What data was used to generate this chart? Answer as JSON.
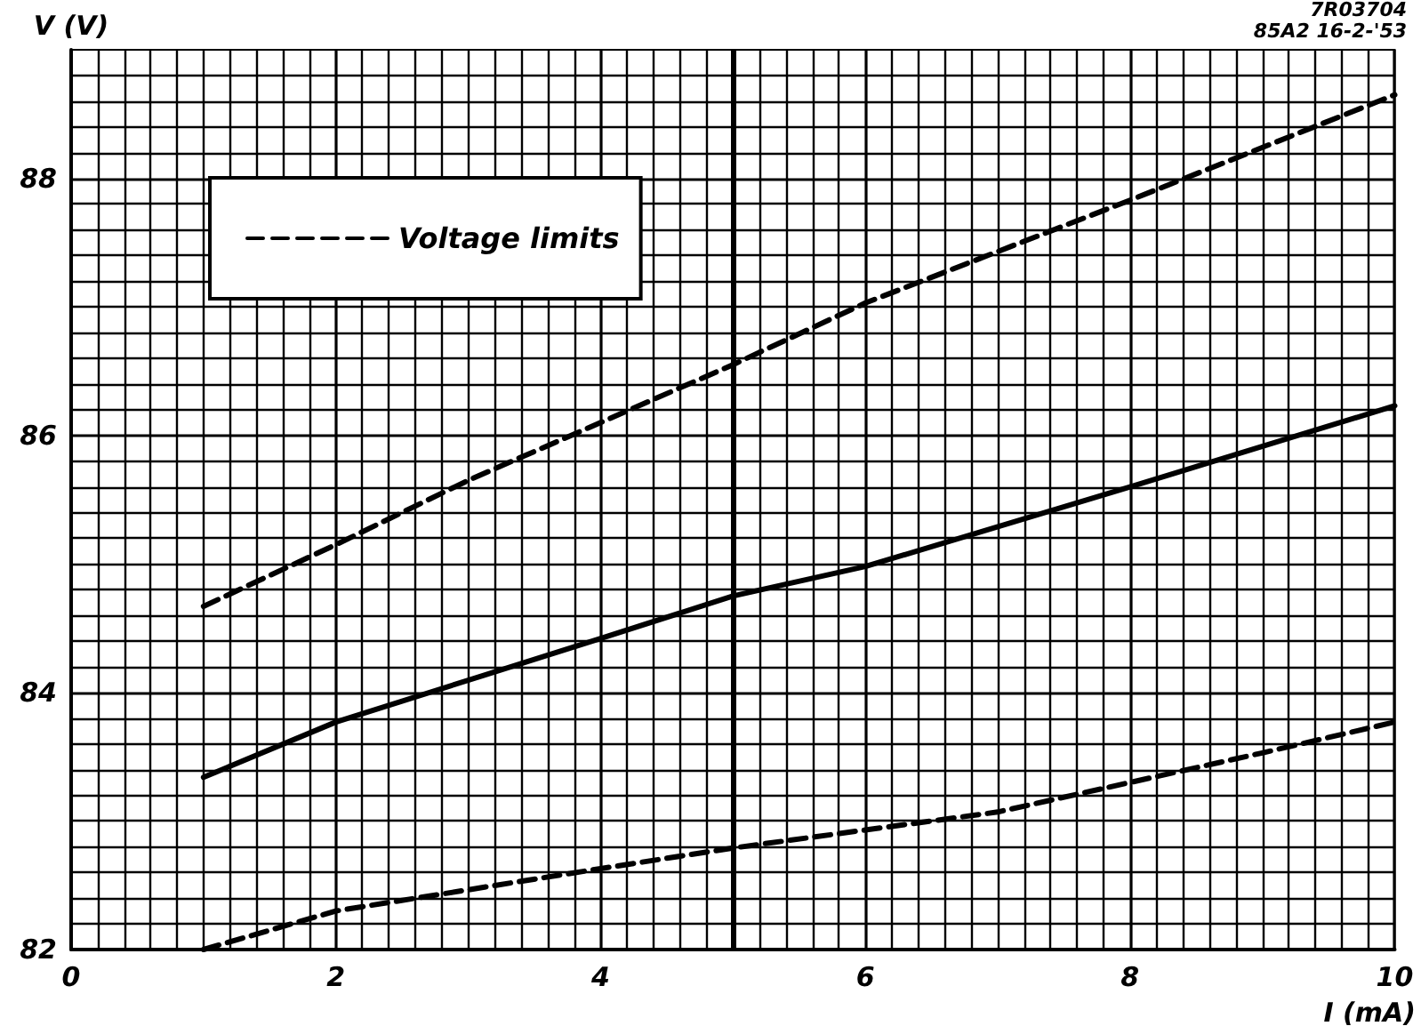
{
  "chart_data": {
    "type": "line",
    "xlabel": "I (mA)",
    "ylabel": "V (V)",
    "xlim": [
      0,
      10
    ],
    "xticks": [
      0,
      2,
      4,
      6,
      8,
      10
    ],
    "ylim": [
      82,
      89
    ],
    "yticks": [
      82,
      84,
      86,
      88
    ],
    "grid": true,
    "legend": "top left",
    "marker": "none",
    "ref_lines": [
      {
        "axis": "x",
        "value": 5,
        "label": null,
        "color": "#000000",
        "line_style": "solid"
      }
    ],
    "annotations": [
      "7R03704",
      "85A2 16-2-'53"
    ],
    "series": [
      {
        "name": "Voltage limits",
        "color": "#000000",
        "line_style": "dashed",
        "x": [
          1,
          2,
          3,
          4,
          5,
          6,
          8,
          10
        ],
        "values": [
          84.67,
          85.15,
          85.65,
          86.1,
          86.55,
          87.03,
          87.83,
          88.65
        ]
      },
      {
        "color": "#000000",
        "line_style": "solid",
        "x": [
          1,
          2,
          4,
          5,
          6,
          8,
          10
        ],
        "values": [
          83.34,
          83.77,
          84.42,
          84.75,
          84.98,
          85.6,
          86.23
        ]
      },
      {
        "color": "#000000",
        "line_style": "dashed",
        "x": [
          1,
          2,
          4,
          5,
          6,
          7,
          8,
          9,
          10
        ],
        "values": [
          82.0,
          82.3,
          82.63,
          82.79,
          82.93,
          83.07,
          83.3,
          83.53,
          83.77
        ]
      }
    ]
  }
}
